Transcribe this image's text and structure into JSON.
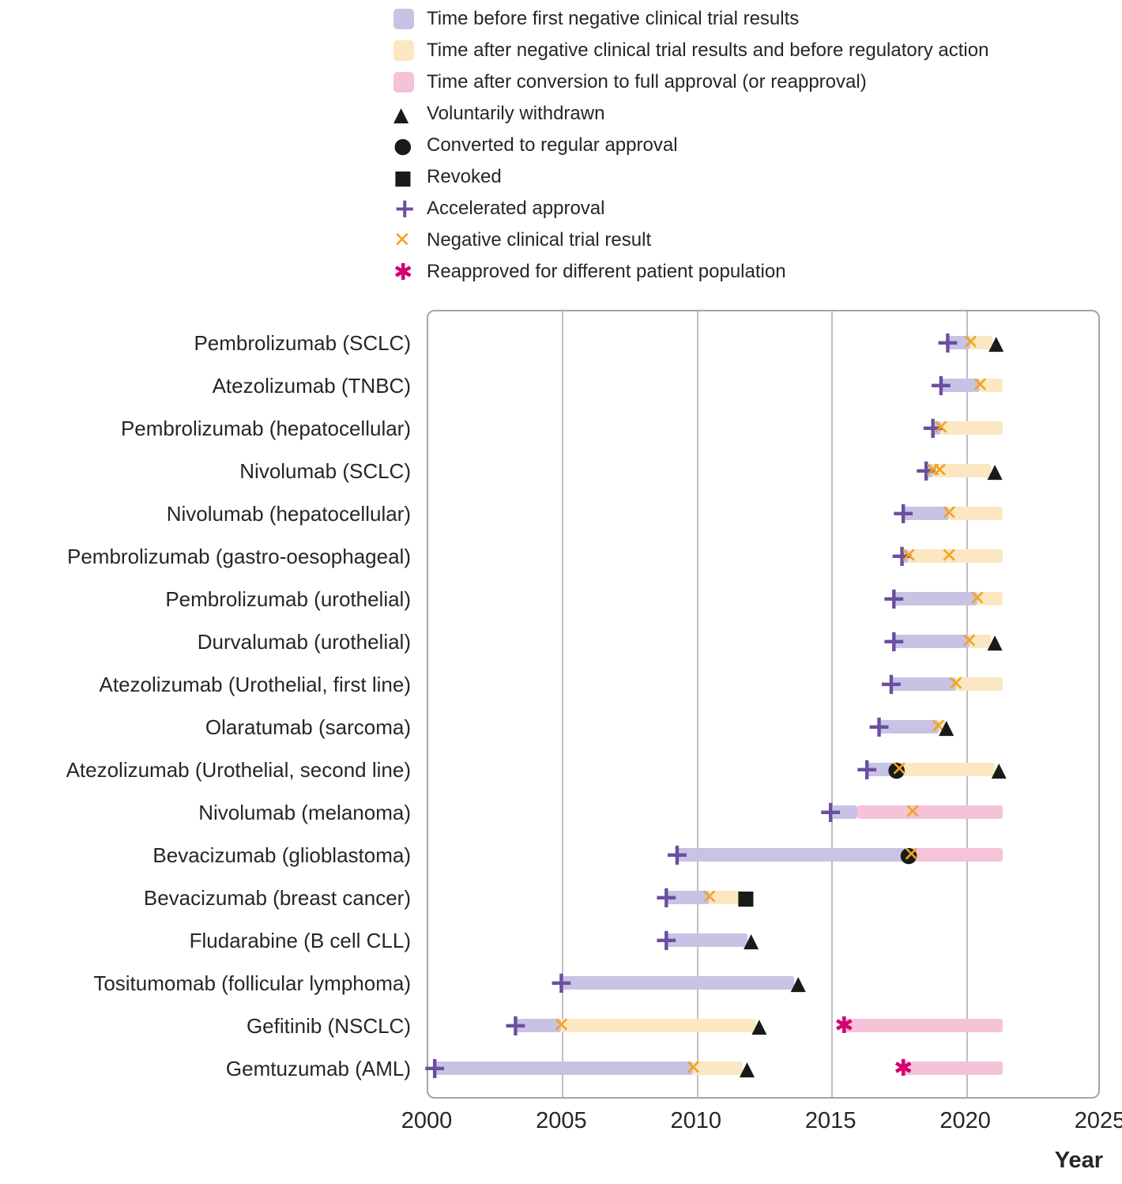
{
  "chart_data": {
    "type": "timeline",
    "title": "",
    "xlabel": "Year",
    "x_axis": {
      "min": 2000,
      "max": 2025,
      "ticks": [
        "2000",
        "2005",
        "2010",
        "2015",
        "2020",
        "2025"
      ],
      "gridlines": [
        2005,
        2010,
        2015,
        2020
      ]
    },
    "segment_colors": {
      "before": "#c8c2e4",
      "after": "#fbe7c1",
      "full": "#f5c2d8"
    },
    "marker_styles": {
      "approval": {
        "glyph": "+",
        "color": "#6a4fa0",
        "meaning": "Accelerated approval"
      },
      "negative": {
        "glyph": "✕",
        "color": "#f2a41c",
        "meaning": "Negative clinical trial result"
      },
      "withdrawn": {
        "glyph": "▲",
        "color": "#1a1a1a",
        "meaning": "Voluntarily withdrawn"
      },
      "converted": {
        "glyph": "●",
        "color": "#1a1a1a",
        "meaning": "Converted to regular approval"
      },
      "revoked": {
        "glyph": "■",
        "color": "#1a1a1a",
        "meaning": "Revoked"
      },
      "reapproved": {
        "glyph": "✱",
        "color": "#d4006e",
        "meaning": "Reapproved for different patient population"
      }
    },
    "legend": [
      {
        "kind": "swatch",
        "style": "before",
        "label": "Time before first negative clinical trial results"
      },
      {
        "kind": "swatch",
        "style": "after",
        "label": "Time after negative clinical trial results and before regulatory action"
      },
      {
        "kind": "swatch",
        "style": "full",
        "label": "Time after conversion to full approval (or reapproval)"
      },
      {
        "kind": "marker",
        "style": "withdrawn",
        "label": "Voluntarily withdrawn"
      },
      {
        "kind": "marker",
        "style": "converted",
        "label": "Converted to regular approval"
      },
      {
        "kind": "marker",
        "style": "revoked",
        "label": "Revoked"
      },
      {
        "kind": "marker",
        "style": "approval",
        "label": "Accelerated approval"
      },
      {
        "kind": "marker",
        "style": "negative",
        "label": "Negative clinical trial result"
      },
      {
        "kind": "marker",
        "style": "reapproved",
        "label": "Reapproved for different patient population"
      }
    ],
    "rows": [
      {
        "label": "Pembrolizumab (SCLC)",
        "segments": [
          {
            "kind": "before",
            "start": 2019.35,
            "end": 2020.2
          },
          {
            "kind": "after",
            "start": 2020.2,
            "end": 2021.0
          }
        ],
        "markers": [
          {
            "kind": "approval",
            "year": 2019.35
          },
          {
            "kind": "negative",
            "year": 2020.2
          },
          {
            "kind": "withdrawn",
            "year": 2021.15
          }
        ]
      },
      {
        "label": "Atezolizumab (TNBC)",
        "segments": [
          {
            "kind": "before",
            "start": 2019.1,
            "end": 2020.55
          },
          {
            "kind": "after",
            "start": 2020.55,
            "end": 2021.4
          }
        ],
        "markers": [
          {
            "kind": "approval",
            "year": 2019.1
          },
          {
            "kind": "negative",
            "year": 2020.55
          }
        ]
      },
      {
        "label": "Pembrolizumab (hepatocellular)",
        "segments": [
          {
            "kind": "before",
            "start": 2018.8,
            "end": 2019.1
          },
          {
            "kind": "after",
            "start": 2019.1,
            "end": 2021.4
          }
        ],
        "markers": [
          {
            "kind": "approval",
            "year": 2018.8
          },
          {
            "kind": "negative",
            "year": 2019.1
          }
        ]
      },
      {
        "label": "Nivolumab (SCLC)",
        "segments": [
          {
            "kind": "before",
            "start": 2018.55,
            "end": 2018.8
          },
          {
            "kind": "after",
            "start": 2018.8,
            "end": 2020.95
          }
        ],
        "markers": [
          {
            "kind": "approval",
            "year": 2018.55
          },
          {
            "kind": "negative",
            "year": 2018.8
          },
          {
            "kind": "negative",
            "year": 2019.05
          },
          {
            "kind": "withdrawn",
            "year": 2021.1
          }
        ]
      },
      {
        "label": "Nivolumab (hepatocellular)",
        "segments": [
          {
            "kind": "before",
            "start": 2017.7,
            "end": 2019.4
          },
          {
            "kind": "after",
            "start": 2019.4,
            "end": 2021.4
          }
        ],
        "markers": [
          {
            "kind": "approval",
            "year": 2017.7
          },
          {
            "kind": "negative",
            "year": 2019.4
          }
        ]
      },
      {
        "label": "Pembrolizumab (gastro-oesophageal)",
        "segments": [
          {
            "kind": "before",
            "start": 2017.65,
            "end": 2017.9
          },
          {
            "kind": "after",
            "start": 2017.9,
            "end": 2021.4
          }
        ],
        "markers": [
          {
            "kind": "approval",
            "year": 2017.65
          },
          {
            "kind": "negative",
            "year": 2017.9
          },
          {
            "kind": "negative",
            "year": 2019.4
          }
        ]
      },
      {
        "label": "Pembrolizumab (urothelial)",
        "segments": [
          {
            "kind": "before",
            "start": 2017.35,
            "end": 2020.45
          },
          {
            "kind": "after",
            "start": 2020.45,
            "end": 2021.4
          }
        ],
        "markers": [
          {
            "kind": "approval",
            "year": 2017.35
          },
          {
            "kind": "negative",
            "year": 2020.45
          }
        ]
      },
      {
        "label": "Durvalumab (urothelial)",
        "segments": [
          {
            "kind": "before",
            "start": 2017.35,
            "end": 2020.15
          },
          {
            "kind": "after",
            "start": 2020.15,
            "end": 2020.95
          }
        ],
        "markers": [
          {
            "kind": "approval",
            "year": 2017.35
          },
          {
            "kind": "negative",
            "year": 2020.15
          },
          {
            "kind": "withdrawn",
            "year": 2021.1
          }
        ]
      },
      {
        "label": "Atezolizumab (Urothelial, first line)",
        "segments": [
          {
            "kind": "before",
            "start": 2017.25,
            "end": 2019.65
          },
          {
            "kind": "after",
            "start": 2019.65,
            "end": 2021.4
          }
        ],
        "markers": [
          {
            "kind": "approval",
            "year": 2017.25
          },
          {
            "kind": "negative",
            "year": 2019.65
          }
        ]
      },
      {
        "label": "Olaratumab (sarcoma)",
        "segments": [
          {
            "kind": "before",
            "start": 2016.8,
            "end": 2019.0
          },
          {
            "kind": "after",
            "start": 2019.0,
            "end": 2019.25
          }
        ],
        "markers": [
          {
            "kind": "approval",
            "year": 2016.8
          },
          {
            "kind": "negative",
            "year": 2019.0
          },
          {
            "kind": "withdrawn",
            "year": 2019.3
          }
        ]
      },
      {
        "label": "Atezolizumab (Urothelial, second line)",
        "segments": [
          {
            "kind": "before",
            "start": 2016.35,
            "end": 2017.45
          },
          {
            "kind": "after",
            "start": 2017.45,
            "end": 2021.1
          }
        ],
        "markers": [
          {
            "kind": "approval",
            "year": 2016.35
          },
          {
            "kind": "converted",
            "year": 2017.45
          },
          {
            "kind": "negative",
            "year": 2017.55
          },
          {
            "kind": "withdrawn",
            "year": 2021.25
          }
        ]
      },
      {
        "label": "Nivolumab (melanoma)",
        "segments": [
          {
            "kind": "before",
            "start": 2015.0,
            "end": 2016.0
          },
          {
            "kind": "full",
            "start": 2016.0,
            "end": 2021.4
          }
        ],
        "markers": [
          {
            "kind": "approval",
            "year": 2015.0
          },
          {
            "kind": "negative",
            "year": 2018.05
          }
        ]
      },
      {
        "label": "Bevacizumab (glioblastoma)",
        "segments": [
          {
            "kind": "before",
            "start": 2009.3,
            "end": 2017.9
          },
          {
            "kind": "full",
            "start": 2017.9,
            "end": 2021.4
          }
        ],
        "markers": [
          {
            "kind": "approval",
            "year": 2009.3
          },
          {
            "kind": "converted",
            "year": 2017.9
          },
          {
            "kind": "negative",
            "year": 2018.0
          }
        ]
      },
      {
        "label": "Bevacizumab (breast cancer)",
        "segments": [
          {
            "kind": "before",
            "start": 2008.9,
            "end": 2010.5
          },
          {
            "kind": "after",
            "start": 2010.5,
            "end": 2011.7
          }
        ],
        "markers": [
          {
            "kind": "approval",
            "year": 2008.9
          },
          {
            "kind": "negative",
            "year": 2010.5
          },
          {
            "kind": "revoked",
            "year": 2011.85
          }
        ]
      },
      {
        "label": "Fludarabine (B cell CLL)",
        "segments": [
          {
            "kind": "before",
            "start": 2008.9,
            "end": 2011.9
          }
        ],
        "markers": [
          {
            "kind": "approval",
            "year": 2008.9
          },
          {
            "kind": "withdrawn",
            "year": 2012.05
          }
        ]
      },
      {
        "label": "Tositumomab (follicular lymphoma)",
        "segments": [
          {
            "kind": "before",
            "start": 2005.0,
            "end": 2013.65
          }
        ],
        "markers": [
          {
            "kind": "approval",
            "year": 2005.0
          },
          {
            "kind": "withdrawn",
            "year": 2013.8
          }
        ]
      },
      {
        "label": "Gefitinib (NSCLC)",
        "segments": [
          {
            "kind": "before",
            "start": 2003.3,
            "end": 2005.0
          },
          {
            "kind": "after",
            "start": 2005.0,
            "end": 2012.2
          },
          {
            "kind": "full",
            "start": 2015.5,
            "end": 2021.4
          }
        ],
        "markers": [
          {
            "kind": "approval",
            "year": 2003.3
          },
          {
            "kind": "negative",
            "year": 2005.0
          },
          {
            "kind": "withdrawn",
            "year": 2012.35
          },
          {
            "kind": "reapproved",
            "year": 2015.5
          }
        ]
      },
      {
        "label": "Gemtuzumab (AML)",
        "segments": [
          {
            "kind": "before",
            "start": 2000.3,
            "end": 2009.9
          },
          {
            "kind": "after",
            "start": 2009.9,
            "end": 2011.75
          },
          {
            "kind": "full",
            "start": 2017.7,
            "end": 2021.4
          }
        ],
        "markers": [
          {
            "kind": "approval",
            "year": 2000.3
          },
          {
            "kind": "negative",
            "year": 2009.9
          },
          {
            "kind": "withdrawn",
            "year": 2011.9
          },
          {
            "kind": "reapproved",
            "year": 2017.7
          }
        ]
      }
    ]
  }
}
